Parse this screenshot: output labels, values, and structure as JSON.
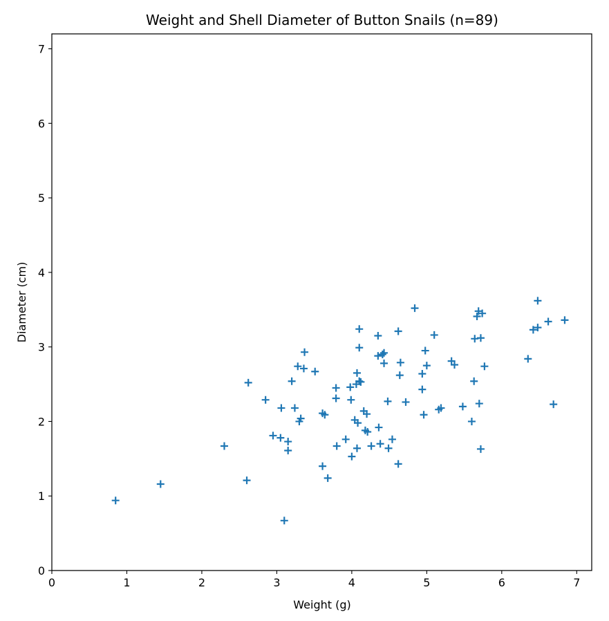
{
  "chart_data": {
    "type": "scatter",
    "title": "Weight and Shell Diameter of Button Snails (n=89)",
    "xlabel": "Weight (g)",
    "ylabel": "Diameter (cm)",
    "xlim": [
      0,
      7.2
    ],
    "ylim": [
      0,
      7.2
    ],
    "xticks": [
      "0",
      "1",
      "2",
      "3",
      "4",
      "5",
      "6",
      "7"
    ],
    "yticks": [
      "0",
      "1",
      "2",
      "3",
      "4",
      "5",
      "6",
      "7"
    ],
    "grid": false,
    "marker": "plus",
    "color": "#1f77b4",
    "points": [
      [
        0.85,
        0.94
      ],
      [
        1.45,
        1.16
      ],
      [
        2.3,
        1.67
      ],
      [
        2.6,
        1.21
      ],
      [
        2.62,
        2.52
      ],
      [
        2.85,
        2.29
      ],
      [
        2.95,
        1.81
      ],
      [
        3.05,
        1.78
      ],
      [
        3.06,
        2.18
      ],
      [
        3.1,
        0.67
      ],
      [
        3.15,
        1.73
      ],
      [
        3.15,
        1.61
      ],
      [
        3.2,
        2.54
      ],
      [
        3.24,
        2.18
      ],
      [
        3.28,
        2.74
      ],
      [
        3.3,
        2.0
      ],
      [
        3.32,
        2.04
      ],
      [
        3.36,
        2.71
      ],
      [
        3.37,
        2.93
      ],
      [
        3.51,
        2.67
      ],
      [
        3.61,
        2.11
      ],
      [
        3.61,
        1.4
      ],
      [
        3.64,
        2.09
      ],
      [
        3.68,
        1.24
      ],
      [
        3.79,
        2.45
      ],
      [
        3.79,
        2.31
      ],
      [
        3.8,
        1.67
      ],
      [
        3.92,
        1.76
      ],
      [
        3.98,
        2.46
      ],
      [
        3.99,
        2.29
      ],
      [
        4.0,
        1.53
      ],
      [
        4.04,
        2.02
      ],
      [
        4.06,
        2.5
      ],
      [
        4.07,
        2.65
      ],
      [
        4.07,
        1.64
      ],
      [
        4.08,
        1.98
      ],
      [
        4.1,
        3.24
      ],
      [
        4.1,
        2.99
      ],
      [
        4.1,
        2.54
      ],
      [
        4.12,
        2.53
      ],
      [
        4.16,
        2.14
      ],
      [
        4.18,
        1.88
      ],
      [
        4.2,
        2.1
      ],
      [
        4.21,
        1.86
      ],
      [
        4.26,
        1.67
      ],
      [
        4.35,
        3.15
      ],
      [
        4.35,
        2.88
      ],
      [
        4.36,
        1.92
      ],
      [
        4.38,
        1.7
      ],
      [
        4.41,
        2.9
      ],
      [
        4.43,
        2.78
      ],
      [
        4.48,
        2.27
      ],
      [
        4.49,
        1.64
      ],
      [
        4.54,
        1.76
      ],
      [
        4.62,
        3.21
      ],
      [
        4.62,
        1.43
      ],
      [
        4.64,
        2.62
      ],
      [
        4.65,
        2.79
      ],
      [
        4.72,
        2.26
      ],
      [
        4.84,
        3.52
      ],
      [
        4.94,
        2.64
      ],
      [
        4.94,
        2.43
      ],
      [
        4.96,
        2.09
      ],
      [
        4.98,
        2.95
      ],
      [
        5.0,
        2.75
      ],
      [
        5.1,
        3.16
      ],
      [
        5.16,
        2.16
      ],
      [
        5.19,
        2.18
      ],
      [
        5.33,
        2.81
      ],
      [
        5.37,
        2.76
      ],
      [
        5.48,
        2.2
      ],
      [
        5.6,
        2.0
      ],
      [
        5.63,
        2.54
      ],
      [
        5.64,
        3.11
      ],
      [
        5.67,
        3.41
      ],
      [
        5.69,
        3.48
      ],
      [
        5.7,
        2.24
      ],
      [
        5.72,
        3.12
      ],
      [
        5.72,
        1.63
      ],
      [
        5.74,
        3.45
      ],
      [
        5.77,
        2.74
      ],
      [
        6.35,
        2.84
      ],
      [
        6.42,
        3.23
      ],
      [
        6.48,
        3.62
      ],
      [
        6.48,
        3.26
      ],
      [
        6.62,
        3.34
      ],
      [
        6.69,
        2.23
      ],
      [
        6.84,
        3.36
      ],
      [
        4.43,
        2.92
      ]
    ]
  }
}
